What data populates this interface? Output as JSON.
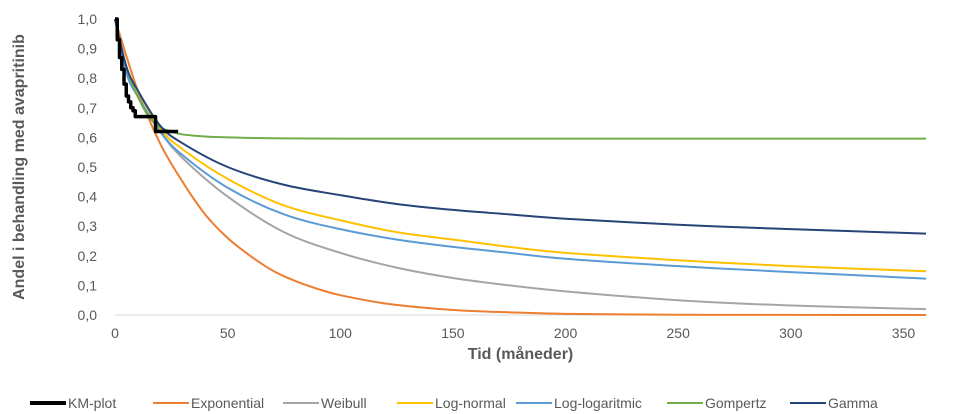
{
  "chart_data": {
    "type": "line",
    "title": "",
    "xlabel": "Tid (måneder)",
    "ylabel": "Andel i behandling med avapritinib",
    "xlim": [
      0,
      360
    ],
    "ylim": [
      0,
      1
    ],
    "x_ticks": [
      0,
      50,
      100,
      150,
      200,
      250,
      300,
      350
    ],
    "x_tick_labels": [
      "0",
      "50",
      "100",
      "150",
      "200",
      "250",
      "300",
      "350"
    ],
    "y_ticks": [
      0,
      0.1,
      0.2,
      0.3,
      0.4,
      0.5,
      0.6,
      0.7,
      0.8,
      0.9,
      1.0
    ],
    "y_tick_labels": [
      "0,0",
      "0,1",
      "0,2",
      "0,3",
      "0,4",
      "0,5",
      "0,6",
      "0,7",
      "0,8",
      "0,9",
      "1,0"
    ],
    "grid": false,
    "legend_position": "bottom",
    "series": [
      {
        "name": "KM-plot",
        "color": "#000000",
        "width": 3.5,
        "x": [
          0,
          1,
          2,
          3,
          4,
          5,
          6,
          7,
          8,
          9,
          10,
          12,
          14,
          16,
          18,
          20,
          22,
          24,
          26,
          28
        ],
        "y": [
          1.0,
          0.93,
          0.87,
          0.83,
          0.78,
          0.74,
          0.72,
          0.7,
          0.69,
          0.67,
          0.67,
          0.67,
          0.67,
          0.67,
          0.62,
          0.62,
          0.62,
          0.62,
          0.62,
          0.62
        ]
      },
      {
        "name": "Exponential",
        "color": "#ED7D31",
        "width": 2,
        "x": [
          0,
          10,
          20,
          30,
          40,
          50,
          60,
          70,
          80,
          90,
          100,
          120,
          140,
          160,
          180,
          200,
          250,
          300,
          360
        ],
        "y": [
          1.0,
          0.76,
          0.58,
          0.45,
          0.34,
          0.26,
          0.2,
          0.15,
          0.115,
          0.088,
          0.067,
          0.039,
          0.023,
          0.013,
          0.008,
          0.004,
          0.001,
          0.0003,
          0.0
        ]
      },
      {
        "name": "Weibull",
        "color": "#A5A5A5",
        "width": 2,
        "x": [
          0,
          5,
          10,
          20,
          30,
          50,
          75,
          100,
          125,
          150,
          175,
          200,
          250,
          300,
          360
        ],
        "y": [
          1.0,
          0.82,
          0.74,
          0.62,
          0.53,
          0.4,
          0.28,
          0.21,
          0.16,
          0.125,
          0.1,
          0.08,
          0.05,
          0.032,
          0.02
        ]
      },
      {
        "name": "Log-normal",
        "color": "#FFC000",
        "width": 2,
        "x": [
          0,
          5,
          10,
          20,
          30,
          50,
          75,
          100,
          125,
          150,
          175,
          200,
          250,
          300,
          360
        ],
        "y": [
          1.0,
          0.84,
          0.76,
          0.63,
          0.56,
          0.46,
          0.37,
          0.32,
          0.28,
          0.255,
          0.23,
          0.21,
          0.185,
          0.165,
          0.148
        ]
      },
      {
        "name": "Log-logaritmic",
        "color": "#5B9BD5",
        "width": 2,
        "x": [
          0,
          5,
          10,
          20,
          30,
          50,
          75,
          100,
          125,
          150,
          175,
          200,
          250,
          300,
          360
        ],
        "y": [
          1.0,
          0.82,
          0.74,
          0.62,
          0.54,
          0.43,
          0.34,
          0.29,
          0.255,
          0.23,
          0.21,
          0.19,
          0.165,
          0.145,
          0.123
        ]
      },
      {
        "name": "Gompertz",
        "color": "#70AD47",
        "width": 2,
        "x": [
          0,
          5,
          10,
          15,
          20,
          25,
          30,
          40,
          50,
          70,
          100,
          200,
          300,
          360
        ],
        "y": [
          1.0,
          0.84,
          0.74,
          0.67,
          0.635,
          0.62,
          0.61,
          0.603,
          0.6,
          0.597,
          0.596,
          0.596,
          0.596,
          0.596
        ]
      },
      {
        "name": "Gamma",
        "color": "#264478",
        "width": 2,
        "x": [
          0,
          5,
          10,
          20,
          30,
          50,
          75,
          100,
          125,
          150,
          175,
          200,
          250,
          300,
          360
        ],
        "y": [
          1.0,
          0.84,
          0.76,
          0.64,
          0.58,
          0.5,
          0.44,
          0.405,
          0.375,
          0.355,
          0.34,
          0.325,
          0.305,
          0.29,
          0.275
        ]
      }
    ]
  }
}
